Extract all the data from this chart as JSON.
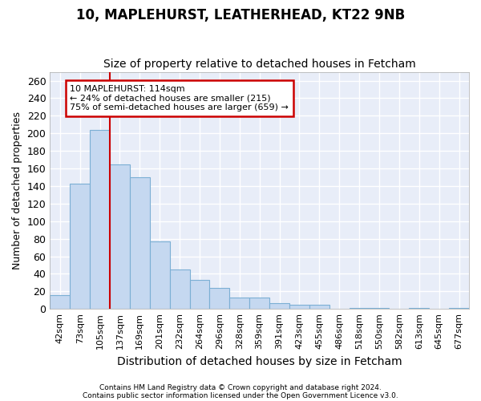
{
  "title1": "10, MAPLEHURST, LEATHERHEAD, KT22 9NB",
  "title2": "Size of property relative to detached houses in Fetcham",
  "xlabel": "Distribution of detached houses by size in Fetcham",
  "ylabel": "Number of detached properties",
  "bar_labels": [
    "42sqm",
    "73sqm",
    "105sqm",
    "137sqm",
    "169sqm",
    "201sqm",
    "232sqm",
    "264sqm",
    "296sqm",
    "328sqm",
    "359sqm",
    "391sqm",
    "423sqm",
    "455sqm",
    "486sqm",
    "518sqm",
    "550sqm",
    "582sqm",
    "613sqm",
    "645sqm",
    "677sqm"
  ],
  "bar_values": [
    16,
    143,
    204,
    165,
    150,
    77,
    45,
    33,
    24,
    13,
    13,
    7,
    5,
    5,
    0,
    1,
    1,
    0,
    1,
    0,
    1
  ],
  "bar_color": "#c5d8f0",
  "bar_edge_color": "#7bafd4",
  "plot_bg_color": "#e8edf8",
  "grid_color": "#ffffff",
  "fig_bg_color": "#ffffff",
  "annotation_text_l1": "10 MAPLEHURST: 114sqm",
  "annotation_text_l2": "← 24% of detached houses are smaller (215)",
  "annotation_text_l3": "75% of semi-detached houses are larger (659) →",
  "annotation_box_fc": "#ffffff",
  "annotation_box_ec": "#cc0000",
  "red_line_x": 2.5,
  "ylim": [
    0,
    270
  ],
  "yticks": [
    0,
    20,
    40,
    60,
    80,
    100,
    120,
    140,
    160,
    180,
    200,
    220,
    240,
    260
  ],
  "title1_fontsize": 12,
  "title2_fontsize": 10,
  "ylabel_fontsize": 9,
  "xlabel_fontsize": 10,
  "footer1": "Contains HM Land Registry data © Crown copyright and database right 2024.",
  "footer2": "Contains public sector information licensed under the Open Government Licence v3.0."
}
